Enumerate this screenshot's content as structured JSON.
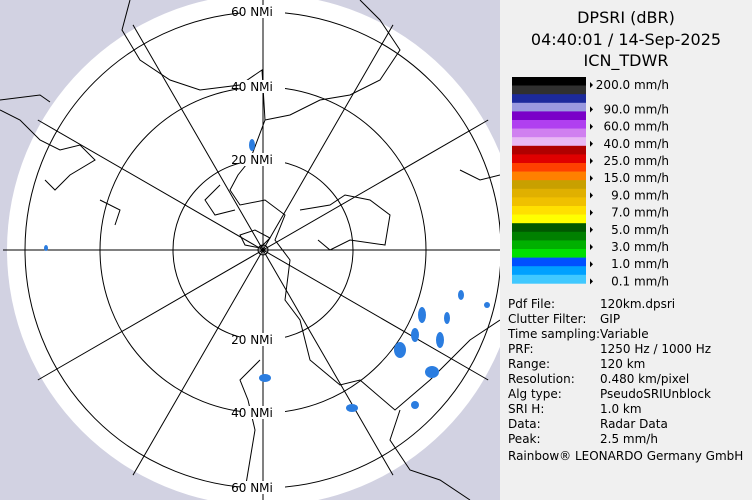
{
  "map": {
    "ring_labels_top": [
      "60 NMi",
      "40 NMi",
      "20 NMi"
    ],
    "ring_labels_bottom": [
      "20 NMi",
      "40 NMi",
      "60 NMi"
    ]
  },
  "panel": {
    "title": "DPSRI (dBR)",
    "timestamp": "04:40:01 / 14-Sep-2025",
    "station": "ICN_TDWR",
    "legend": [
      {
        "label": "200.0 mm/h",
        "colors": [
          "#000000",
          "#303030"
        ]
      },
      {
        "label": "90.0 mm/h",
        "colors": [
          "#1c2a9c",
          "#9a9ae0"
        ]
      },
      {
        "label": "60.0 mm/h",
        "colors": [
          "#7a00c8",
          "#b040f0"
        ]
      },
      {
        "label": "40.0 mm/h",
        "colors": [
          "#d080f0",
          "#e8b8f4"
        ]
      },
      {
        "label": "25.0 mm/h",
        "colors": [
          "#b00000",
          "#e00000"
        ]
      },
      {
        "label": "15.0 mm/h",
        "colors": [
          "#ff4000",
          "#ff8000"
        ]
      },
      {
        "label": "9.0 mm/h",
        "colors": [
          "#c8a000",
          "#e0b000"
        ]
      },
      {
        "label": "7.0 mm/h",
        "colors": [
          "#f0c000",
          "#ffe000"
        ]
      },
      {
        "label": "5.0 mm/h",
        "colors": [
          "#ffff00",
          "#005800"
        ]
      },
      {
        "label": "3.0 mm/h",
        "colors": [
          "#008000",
          "#00b000"
        ]
      },
      {
        "label": "1.0 mm/h",
        "colors": [
          "#00e000",
          "#0050ff"
        ]
      },
      {
        "label": "0.1 mm/h",
        "colors": [
          "#00a0ff",
          "#40c8ff"
        ]
      }
    ],
    "info": [
      [
        "Pdf File:",
        "120km.dpsri"
      ],
      [
        "Clutter Filter:",
        "GIP"
      ],
      [
        "Time sampling:",
        "Variable"
      ],
      [
        "PRF:",
        "1250 Hz / 1000 Hz"
      ],
      [
        "Range:",
        "120 km"
      ],
      [
        "Resolution:",
        "0.480 km/pixel"
      ],
      [
        "Alg type:",
        "PseudoSRIUnblock"
      ],
      [
        "SRI H:",
        "1.0 km"
      ],
      [
        "Data:",
        "Radar Data"
      ],
      [
        "Peak:",
        "2.5 mm/h"
      ]
    ],
    "credit": "Rainbow® LEONARDO Germany GmbH"
  }
}
